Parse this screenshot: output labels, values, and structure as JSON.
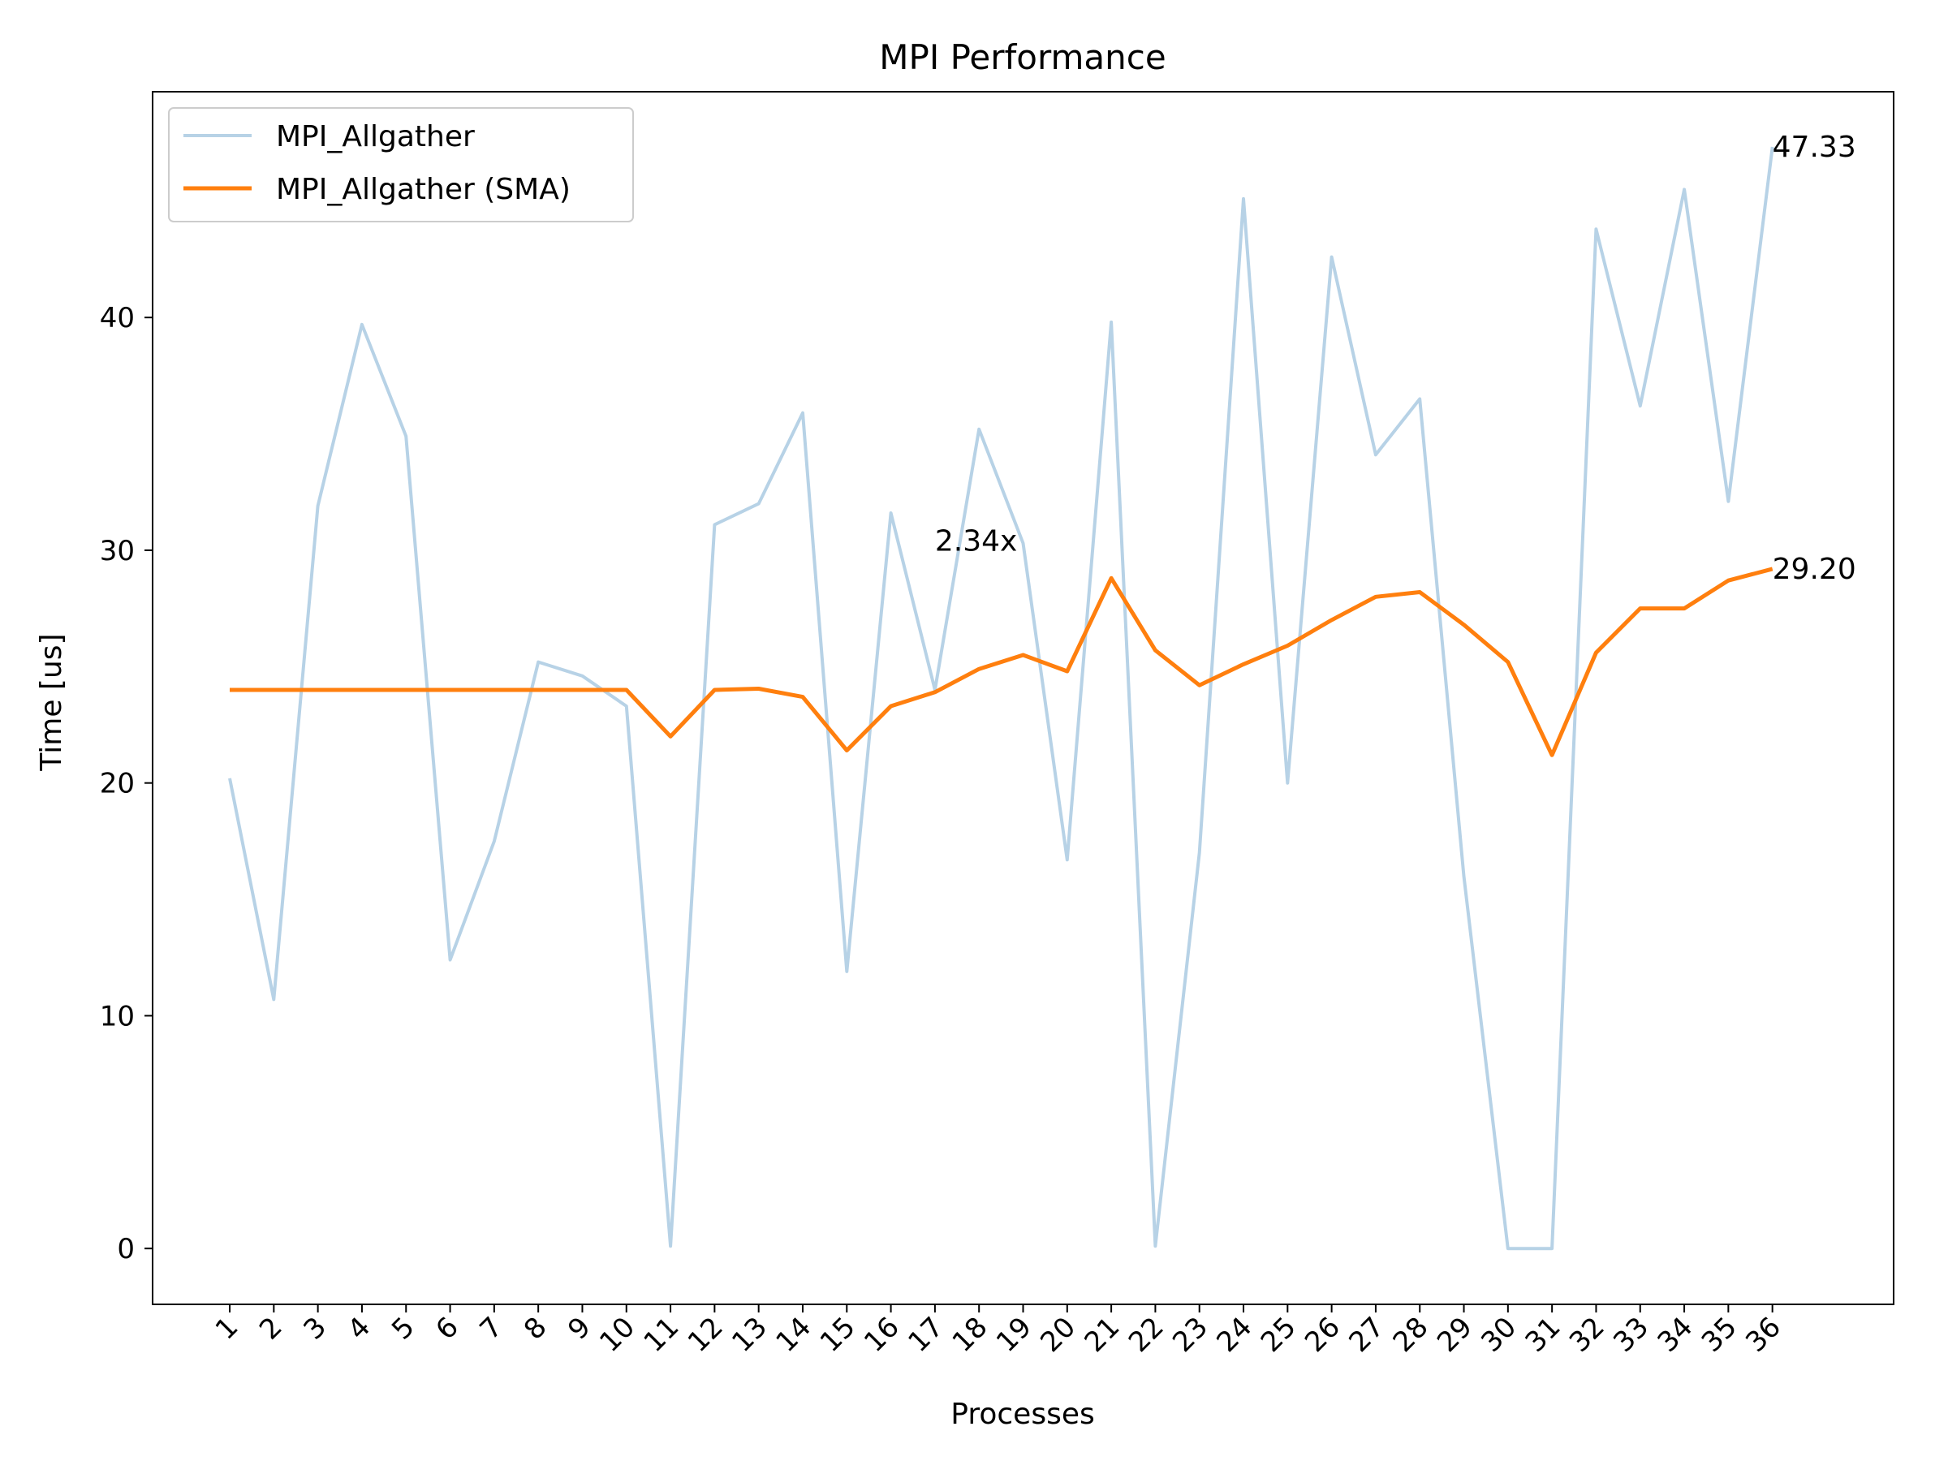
{
  "chart_data": {
    "type": "line",
    "title": "MPI Performance",
    "xlabel": "Processes",
    "ylabel": "Time [us]",
    "x": [
      1,
      2,
      3,
      4,
      5,
      6,
      7,
      8,
      9,
      10,
      11,
      12,
      13,
      14,
      15,
      16,
      17,
      18,
      19,
      20,
      21,
      22,
      23,
      24,
      25,
      26,
      27,
      28,
      29,
      30,
      31,
      32,
      33,
      34,
      35,
      36
    ],
    "xticks": [
      "1",
      "2",
      "3",
      "4",
      "5",
      "6",
      "7",
      "8",
      "9",
      "10",
      "11",
      "12",
      "13",
      "14",
      "15",
      "16",
      "17",
      "18",
      "19",
      "20",
      "21",
      "22",
      "23",
      "24",
      "25",
      "26",
      "27",
      "28",
      "29",
      "30",
      "31",
      "32",
      "33",
      "34",
      "35",
      "36"
    ],
    "yticks": [
      0,
      10,
      20,
      30,
      40
    ],
    "ylim": [
      -2.4,
      49.7
    ],
    "xlim": [
      -0.75,
      38.75
    ],
    "grid": false,
    "legend_position": "top-left",
    "series": [
      {
        "name": "MPI_Allgather",
        "color": "#b7d2e6",
        "values": [
          20.2,
          10.7,
          31.9,
          39.7,
          34.9,
          12.4,
          17.5,
          25.2,
          24.6,
          23.3,
          0.1,
          31.1,
          32.0,
          35.9,
          11.9,
          31.6,
          24.0,
          35.2,
          30.3,
          16.7,
          39.8,
          0.1,
          17.0,
          45.1,
          20.0,
          42.6,
          34.1,
          36.5,
          16.0,
          0.0,
          0.0,
          43.8,
          36.2,
          45.5,
          32.1,
          47.33
        ]
      },
      {
        "name": "MPI_Allgather (SMA)",
        "color": "#ff7f0e",
        "values": [
          24.0,
          24.0,
          24.0,
          24.0,
          24.0,
          24.0,
          24.0,
          24.0,
          24.0,
          24.0,
          22.0,
          24.0,
          24.05,
          23.7,
          21.4,
          23.3,
          23.9,
          24.9,
          25.5,
          24.8,
          28.8,
          25.7,
          24.2,
          25.1,
          25.9,
          27.0,
          28.0,
          28.2,
          26.8,
          25.2,
          21.2,
          25.6,
          27.5,
          27.5,
          28.7,
          29.2
        ]
      }
    ],
    "annotations": [
      {
        "text": "2.34x",
        "x": 17.0,
        "y": 30.4
      },
      {
        "text": "47.33",
        "x": 36.0,
        "y": 47.33
      },
      {
        "text": "29.20",
        "x": 36.0,
        "y": 29.2
      }
    ]
  }
}
